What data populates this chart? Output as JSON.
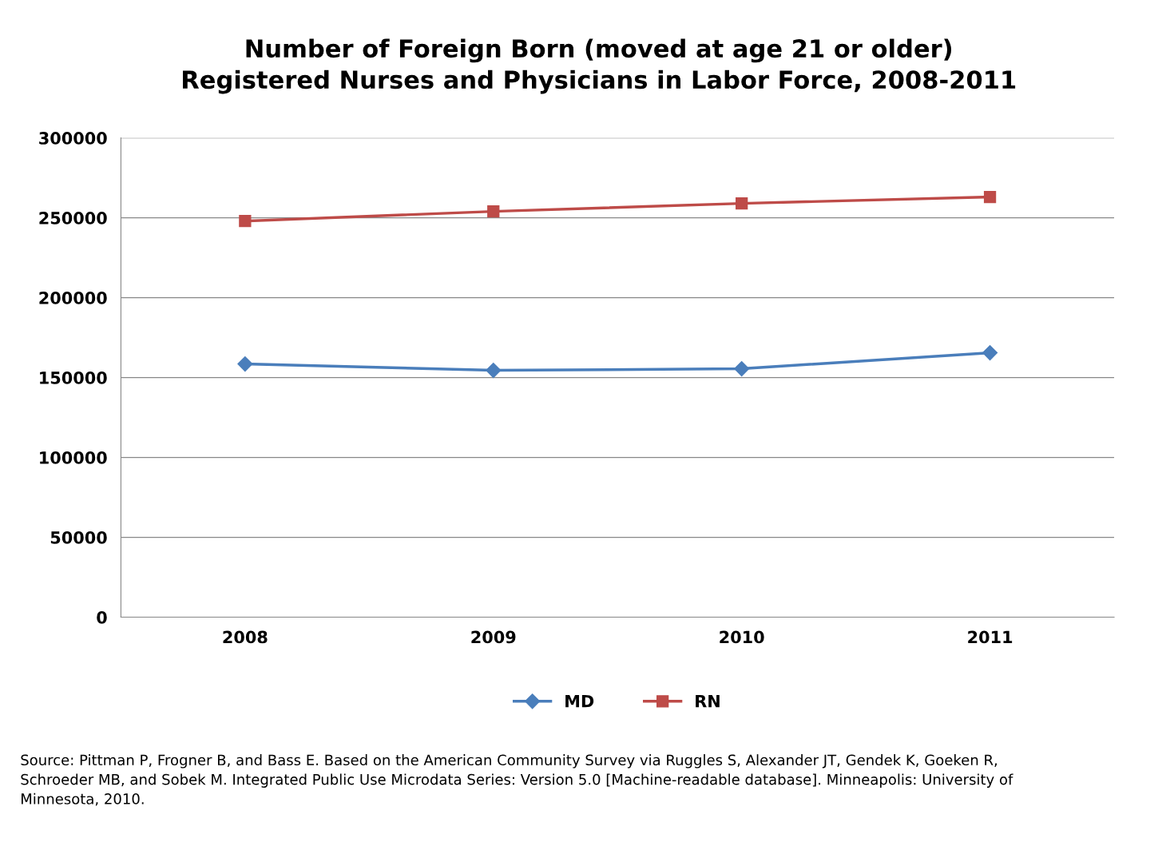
{
  "chart_data": {
    "type": "line",
    "title": "Number of Foreign Born (moved at age 21 or older)\nRegistered Nurses and Physicians in Labor Force, 2008-2011",
    "categories": [
      "2008",
      "2009",
      "2010",
      "2011"
    ],
    "series": [
      {
        "name": "MD",
        "color": "#4a7ebb",
        "marker": "diamond",
        "values": [
          158500,
          154500,
          155500,
          165500
        ]
      },
      {
        "name": "RN",
        "color": "#be4b48",
        "marker": "square",
        "values": [
          248000,
          254000,
          259000,
          263000
        ]
      }
    ],
    "ylim": [
      0,
      300000
    ],
    "yticks": [
      0,
      50000,
      100000,
      150000,
      200000,
      250000,
      300000
    ],
    "grid": "y",
    "legend": "bottom",
    "line_style": "solid",
    "annotations": [
      "Source: Pittman P, Frogner B, and Bass E. Based on the American Community Survey via Ruggles S, Alexander JT, Gendek K, Goeken R, Schroeder MB, and Sobek M. Integrated Public Use Microdata Series: Version 5.0 [Machine-readable database]. Minneapolis: University of Minnesota, 2010."
    ]
  }
}
